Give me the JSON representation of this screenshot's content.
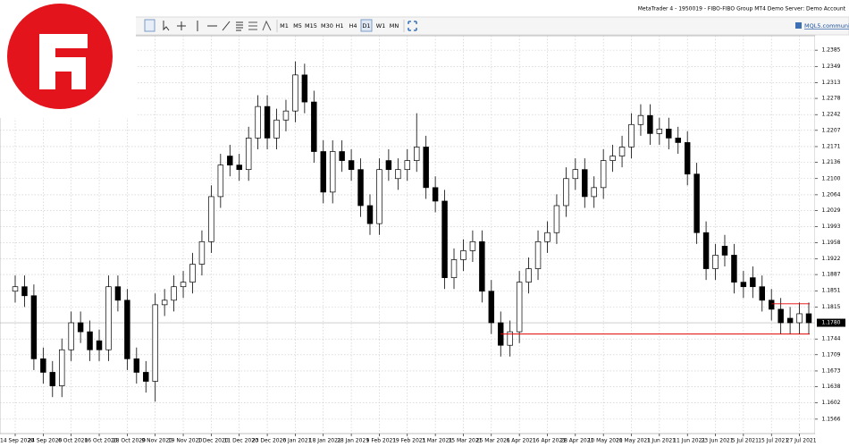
{
  "window": {
    "title": "MetaTrader 4 - 1950019 - FIBO-FIBO Group MT4 Demo Server: Demo Account",
    "timeframes": [
      "M1",
      "M5",
      "M15",
      "M30",
      "H1",
      "H4",
      "D1",
      "W1",
      "MN"
    ],
    "active_timeframe": "D1",
    "link": "MQL5.community"
  },
  "chart_data": {
    "type": "candlestick",
    "categories": [
      "14 Sep 2020",
      null,
      null,
      "24 Sep 2020",
      null,
      null,
      "6 Oct 2020",
      null,
      null,
      "16 Oct 2020",
      null,
      null,
      "28 Oct 2020",
      null,
      null,
      "9 Nov 2020",
      null,
      null,
      "19 Nov 2020",
      null,
      null,
      "1 Dec 2020",
      null,
      null,
      "11 Dec 2020",
      null,
      null,
      "23 Dec 2020",
      null,
      null,
      "6 Jan 2021",
      null,
      null,
      "18 Jan 2021",
      null,
      null,
      "28 Jan 2021",
      null,
      null,
      "9 Feb 2021",
      null,
      null,
      "19 Feb 2021",
      null,
      null,
      "3 Mar 2021",
      null,
      null,
      "15 Mar 2021",
      null,
      null,
      "25 Mar 2021",
      null,
      null,
      "6 Apr 2021",
      null,
      null,
      "16 Apr 2021",
      null,
      null,
      "28 Apr 2021",
      null,
      null,
      "10 May 2021",
      null,
      null,
      "20 May 2021",
      null,
      null,
      "1 Jun 2021",
      null,
      null,
      "11 Jun 2021",
      null,
      null,
      "23 Jun 2021",
      null,
      null,
      "5 Jul 2021",
      null,
      null,
      "15 Jul 2021",
      null,
      null,
      "27 Jul 2021",
      null
    ],
    "open": [
      1.185,
      1.186,
      1.184,
      1.17,
      1.167,
      1.164,
      1.172,
      1.178,
      1.176,
      1.174,
      1.172,
      1.186,
      1.183,
      1.17,
      1.167,
      1.165,
      1.182,
      1.183,
      1.186,
      1.187,
      1.191,
      1.196,
      1.206,
      1.215,
      1.213,
      1.212,
      1.219,
      1.226,
      1.219,
      1.223,
      1.225,
      1.233,
      1.227,
      1.216,
      1.207,
      1.216,
      1.214,
      1.212,
      1.204,
      1.2,
      1.214,
      1.21,
      1.212,
      1.214,
      1.217,
      1.208,
      1.205,
      1.188,
      1.192,
      1.194,
      1.196,
      1.185,
      1.178,
      1.173,
      1.176,
      1.187,
      1.19,
      1.196,
      1.198,
      1.204,
      1.21,
      1.212,
      1.206,
      1.208,
      1.214,
      1.215,
      1.217,
      1.222,
      1.224,
      1.22,
      1.221,
      1.219,
      1.218,
      1.211,
      1.198,
      1.19,
      1.195,
      1.193,
      1.187,
      1.188,
      1.186,
      1.183,
      1.181,
      1.179,
      1.178,
      1.18
    ],
    "high": [
      1.1885,
      1.1885,
      1.1865,
      1.1725,
      1.1695,
      1.1745,
      1.1805,
      1.1805,
      1.1785,
      1.1765,
      1.1885,
      1.1885,
      1.1855,
      1.1725,
      1.1695,
      1.1845,
      1.1855,
      1.1885,
      1.1895,
      1.1935,
      1.1985,
      1.2085,
      1.2155,
      1.2175,
      1.2155,
      1.2215,
      1.2285,
      1.2285,
      1.2255,
      1.2275,
      1.236,
      1.2355,
      1.2295,
      1.2185,
      1.2185,
      1.2185,
      1.2165,
      1.2145,
      1.2065,
      1.2145,
      1.2165,
      1.2145,
      1.2165,
      1.2245,
      1.2195,
      1.2105,
      1.2075,
      1.1945,
      1.1965,
      1.1985,
      1.1985,
      1.1875,
      1.1805,
      1.1785,
      1.1895,
      1.1925,
      1.1985,
      1.2005,
      1.2065,
      1.2125,
      1.2145,
      1.2145,
      1.2105,
      1.2165,
      1.2175,
      1.2195,
      1.2245,
      1.2265,
      1.2265,
      1.2235,
      1.2235,
      1.2215,
      1.2205,
      1.2135,
      1.2005,
      1.1955,
      1.1975,
      1.1955,
      1.1895,
      1.1905,
      1.1885,
      1.1855,
      1.1835,
      1.1815,
      1.1825,
      1.1825
    ],
    "low": [
      1.1825,
      1.1815,
      1.1675,
      1.1645,
      1.1615,
      1.1615,
      1.1695,
      1.1735,
      1.1695,
      1.1695,
      1.1695,
      1.1805,
      1.1675,
      1.1645,
      1.1625,
      1.1605,
      1.1795,
      1.1805,
      1.1835,
      1.1845,
      1.1885,
      1.1935,
      1.2035,
      1.2105,
      1.2095,
      1.2095,
      1.2165,
      1.2165,
      1.2165,
      1.2205,
      1.2225,
      1.2245,
      1.2135,
      1.2045,
      1.2045,
      1.2115,
      1.2095,
      1.2015,
      1.1975,
      1.1975,
      1.2095,
      1.2075,
      1.2095,
      1.2115,
      1.2055,
      1.2025,
      1.1855,
      1.1855,
      1.1895,
      1.1915,
      1.1825,
      1.1755,
      1.1705,
      1.1705,
      1.1735,
      1.1845,
      1.1875,
      1.1935,
      1.1955,
      1.2015,
      1.2075,
      1.2035,
      1.2035,
      1.2055,
      1.2115,
      1.2125,
      1.2145,
      1.2195,
      1.2175,
      1.2175,
      1.2165,
      1.2155,
      1.2085,
      1.1955,
      1.1875,
      1.1875,
      1.1905,
      1.1845,
      1.1835,
      1.1835,
      1.1805,
      1.1785,
      1.1755,
      1.1755,
      1.1755,
      1.1755
    ],
    "close": [
      1.186,
      1.184,
      1.17,
      1.167,
      1.164,
      1.172,
      1.178,
      1.176,
      1.172,
      1.172,
      1.186,
      1.183,
      1.17,
      1.167,
      1.165,
      1.182,
      1.183,
      1.186,
      1.187,
      1.191,
      1.196,
      1.206,
      1.213,
      1.213,
      1.212,
      1.219,
      1.226,
      1.219,
      1.223,
      1.225,
      1.233,
      1.227,
      1.216,
      1.207,
      1.216,
      1.214,
      1.212,
      1.204,
      1.2,
      1.212,
      1.212,
      1.212,
      1.214,
      1.217,
      1.208,
      1.205,
      1.188,
      1.192,
      1.194,
      1.196,
      1.185,
      1.178,
      1.173,
      1.176,
      1.187,
      1.19,
      1.196,
      1.198,
      1.204,
      1.21,
      1.212,
      1.206,
      1.208,
      1.214,
      1.215,
      1.217,
      1.222,
      1.224,
      1.22,
      1.221,
      1.219,
      1.218,
      1.211,
      1.198,
      1.19,
      1.193,
      1.193,
      1.187,
      1.186,
      1.186,
      1.183,
      1.181,
      1.178,
      1.178,
      1.18,
      1.178
    ],
    "up_color": "#ffffff",
    "down_color": "#000000",
    "ylim": [
      1.1534,
      1.2417
    ],
    "yticks": [
      1.1566,
      1.1602,
      1.1638,
      1.1673,
      1.1709,
      1.1744,
      1.1815,
      1.1851,
      1.1887,
      1.1922,
      1.1958,
      1.1993,
      1.2029,
      1.2064,
      {
        "value": 1.21,
        "label": "1.2100"
      },
      1.2136,
      1.2171,
      1.2207,
      1.2242,
      1.2278,
      1.2313,
      1.2349,
      1.2385
    ],
    "grid": true,
    "last_price": {
      "value": 1.178,
      "label": "1.1780"
    },
    "levels": [
      {
        "value": 1.1755,
        "start": 52,
        "color": "#e00000"
      },
      {
        "value": 1.1822,
        "start": 81,
        "color": "#e00000"
      }
    ]
  }
}
